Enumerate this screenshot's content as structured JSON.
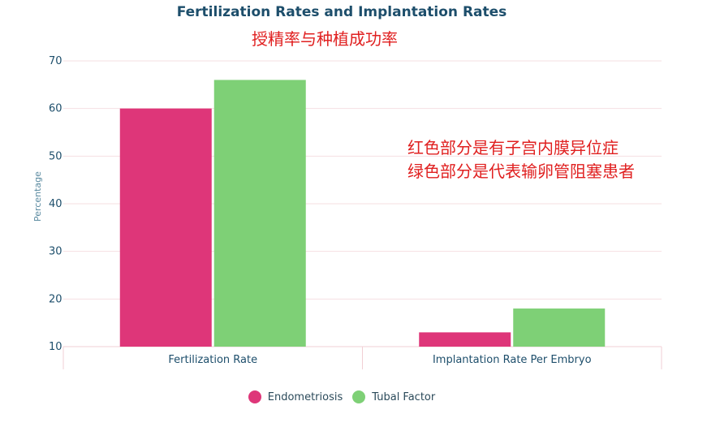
{
  "title": "Fertilization Rates and Implantation Rates",
  "notes": {
    "subtitle": "授精率与种植成功率",
    "red": "红色部分是有子宫内膜异位症",
    "green": "绿色部分是代表输卵管阻塞患者"
  },
  "chart_data": {
    "type": "bar",
    "title": "Fertilization Rates and Implantation Rates",
    "xlabel": "",
    "ylabel": "Percentage",
    "categories": [
      "Fertilization Rate",
      "Implantation Rate Per Embryo"
    ],
    "series": [
      {
        "name": "Endometriosis",
        "color": "#de3679",
        "values": [
          60,
          13
        ]
      },
      {
        "name": "Tubal Factor",
        "color": "#7ed076",
        "values": [
          66,
          18
        ]
      }
    ],
    "ylim": [
      10,
      70
    ],
    "yticks": [
      "10",
      "20",
      "30",
      "40",
      "50",
      "60",
      "70"
    ],
    "grid": true,
    "legend": "bottom-center"
  }
}
